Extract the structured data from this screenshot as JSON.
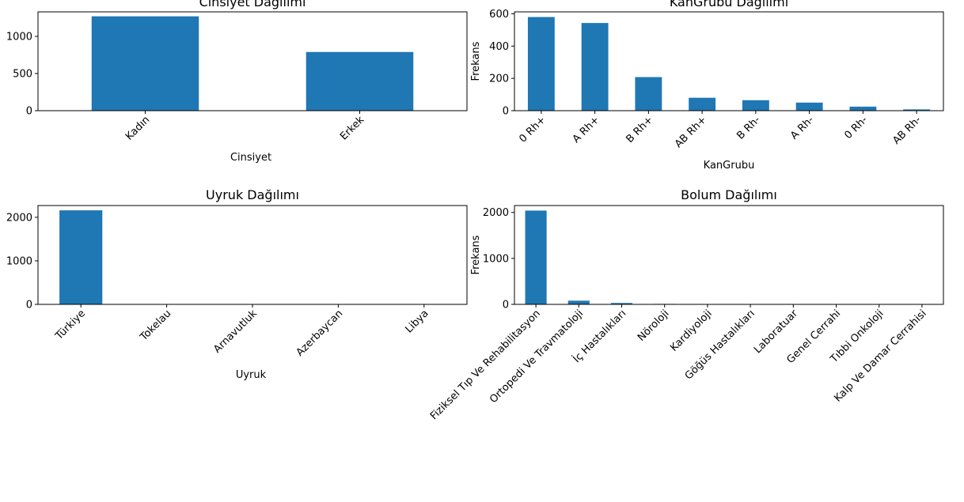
{
  "chart_data": [
    {
      "type": "bar",
      "title": "Cinsiyet Dağılımı",
      "xlabel": "Cinsiyet",
      "ylabel": "",
      "categories": [
        "Kadın",
        "Erkek"
      ],
      "values": [
        1270,
        790
      ],
      "ylim": [
        0,
        1330
      ],
      "yticks": [
        0,
        500,
        1000
      ],
      "color": "#1f77b4"
    },
    {
      "type": "bar",
      "title": "KanGrubu Dağılımı",
      "xlabel": "KanGrubu",
      "ylabel": "Frekans",
      "categories": [
        "0 Rh+",
        "A Rh+",
        "B Rh+",
        "AB Rh+",
        "B Rh-",
        "A Rh-",
        "0 Rh-",
        "AB Rh-"
      ],
      "values": [
        580,
        543,
        208,
        80,
        65,
        50,
        25,
        8
      ],
      "ylim": [
        0,
        612
      ],
      "yticks": [
        0,
        200,
        400,
        600
      ],
      "color": "#1f77b4"
    },
    {
      "type": "bar",
      "title": "Uyruk Dağılımı",
      "xlabel": "Uyruk",
      "ylabel": "",
      "categories": [
        "Türkiye",
        "Tokelau",
        "Arnavutluk",
        "Azerbaycan",
        "Libya"
      ],
      "values": [
        2160,
        8,
        6,
        5,
        4
      ],
      "ylim": [
        0,
        2270
      ],
      "yticks": [
        0,
        1000,
        2000
      ],
      "color": "#1f77b4"
    },
    {
      "type": "bar",
      "title": "Bolum Dağılımı",
      "xlabel": "",
      "ylabel": "Frekans",
      "categories": [
        "Fiziksel Tıp Ve Rehabilitasyon",
        "Ortopedi Ve Travmatoloji",
        "İç Hastalıkları",
        "Nöroloji",
        "Kardiyoloji",
        "Göğüs Hastalıkları",
        "Laboratuar",
        "Genel Cerrahi",
        "Tıbbi Onkoloji",
        "Kalp Ve Damar Cerrahisi"
      ],
      "values": [
        2040,
        80,
        30,
        10,
        8,
        2,
        2,
        2,
        2,
        2
      ],
      "ylim": [
        0,
        2150
      ],
      "yticks": [
        0,
        1000,
        2000
      ],
      "color": "#1f77b4"
    }
  ]
}
